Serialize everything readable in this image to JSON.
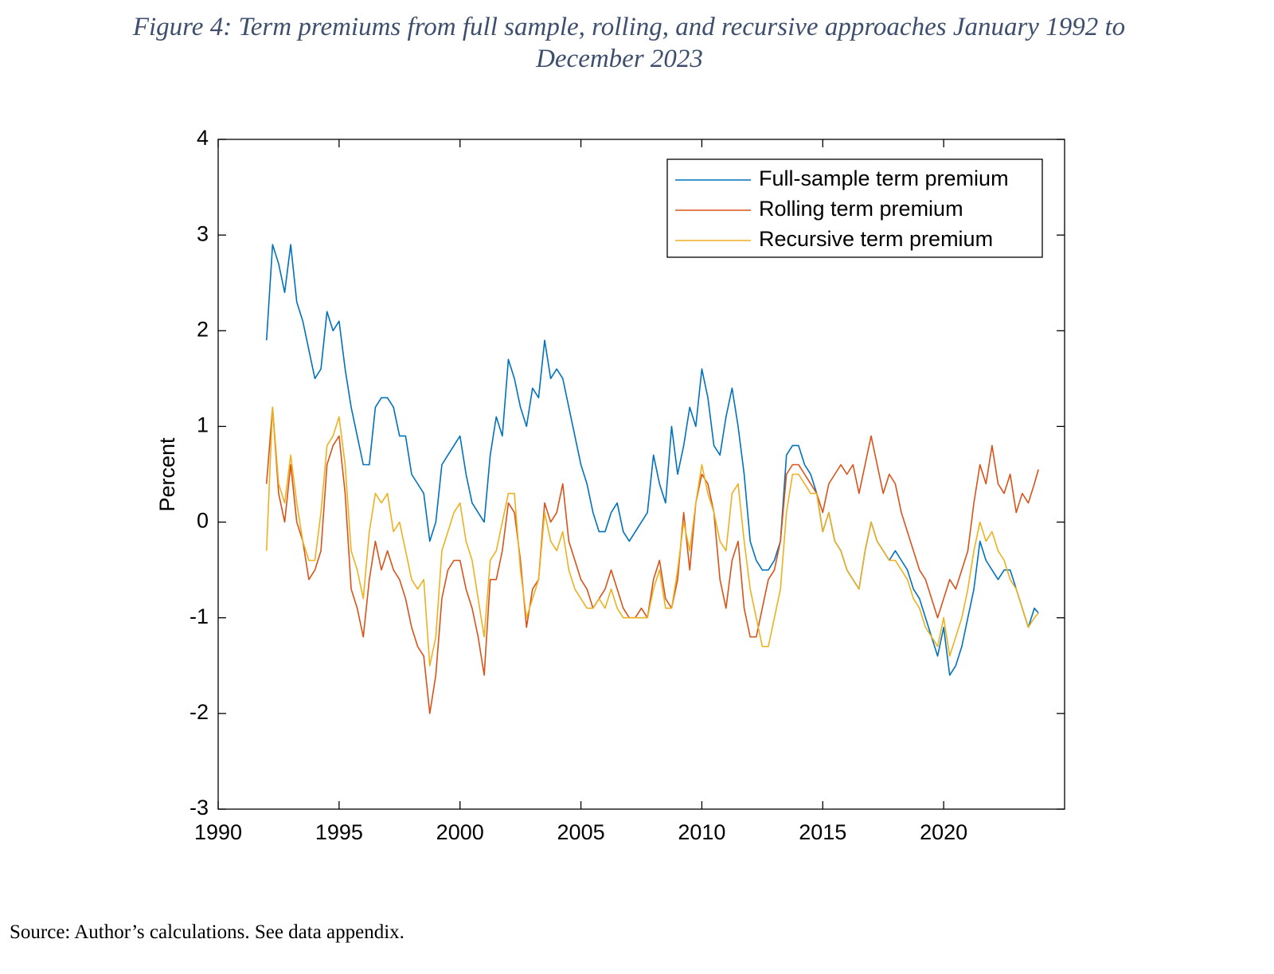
{
  "chart_data": {
    "type": "line",
    "title": "Figure 4: Term premiums from full sample, rolling, and recursive approaches January 1992 to December 2023",
    "ylabel": "Percent",
    "source": "Source: Author’s calculations. See data appendix.",
    "xlim": [
      1990,
      2025
    ],
    "xticks": [
      1990,
      1995,
      2000,
      2005,
      2010,
      2015,
      2020
    ],
    "ylim": [
      -3,
      4
    ],
    "yticks": [
      -3,
      -2,
      -1,
      0,
      1,
      2,
      3,
      4
    ],
    "grid": false,
    "legend": "northeast",
    "x": [
      1992,
      1992.25,
      1992.5,
      1992.75,
      1993,
      1993.25,
      1993.5,
      1993.75,
      1994,
      1994.25,
      1994.5,
      1994.75,
      1995,
      1995.25,
      1995.5,
      1995.75,
      1996,
      1996.25,
      1996.5,
      1996.75,
      1997,
      1997.25,
      1997.5,
      1997.75,
      1998,
      1998.25,
      1998.5,
      1998.75,
      1999,
      1999.25,
      1999.5,
      1999.75,
      2000,
      2000.25,
      2000.5,
      2000.75,
      2001,
      2001.25,
      2001.5,
      2001.75,
      2002,
      2002.25,
      2002.5,
      2002.75,
      2003,
      2003.25,
      2003.5,
      2003.75,
      2004,
      2004.25,
      2004.5,
      2004.75,
      2005,
      2005.25,
      2005.5,
      2005.75,
      2006,
      2006.25,
      2006.5,
      2006.75,
      2007,
      2007.25,
      2007.5,
      2007.75,
      2008,
      2008.25,
      2008.5,
      2008.75,
      2009,
      2009.25,
      2009.5,
      2009.75,
      2010,
      2010.25,
      2010.5,
      2010.75,
      2011,
      2011.25,
      2011.5,
      2011.75,
      2012,
      2012.25,
      2012.5,
      2012.75,
      2013,
      2013.25,
      2013.5,
      2013.75,
      2014,
      2014.25,
      2014.5,
      2014.75,
      2015,
      2015.25,
      2015.5,
      2015.75,
      2016,
      2016.25,
      2016.5,
      2016.75,
      2017,
      2017.25,
      2017.5,
      2017.75,
      2018,
      2018.25,
      2018.5,
      2018.75,
      2019,
      2019.25,
      2019.5,
      2019.75,
      2020,
      2020.25,
      2020.5,
      2020.75,
      2021,
      2021.25,
      2021.5,
      2021.75,
      2022,
      2022.25,
      2022.5,
      2022.75,
      2023,
      2023.25,
      2023.5,
      2023.75,
      2023.917
    ],
    "series": [
      {
        "name": "Full-sample term premium",
        "color": "#0072bd",
        "values": [
          1.9,
          2.9,
          2.7,
          2.4,
          2.9,
          2.3,
          2.1,
          1.8,
          1.5,
          1.6,
          2.2,
          2.0,
          2.1,
          1.6,
          1.2,
          0.9,
          0.6,
          0.6,
          1.2,
          1.3,
          1.3,
          1.2,
          0.9,
          0.9,
          0.5,
          0.4,
          0.3,
          -0.2,
          0.0,
          0.6,
          0.7,
          0.8,
          0.9,
          0.5,
          0.2,
          0.1,
          0.0,
          0.7,
          1.1,
          0.9,
          1.7,
          1.5,
          1.2,
          1.0,
          1.4,
          1.3,
          1.9,
          1.5,
          1.6,
          1.5,
          1.2,
          0.9,
          0.6,
          0.4,
          0.1,
          -0.1,
          -0.1,
          0.1,
          0.2,
          -0.1,
          -0.2,
          -0.1,
          0.0,
          0.1,
          0.7,
          0.4,
          0.2,
          1.0,
          0.5,
          0.8,
          1.2,
          1.0,
          1.6,
          1.3,
          0.8,
          0.7,
          1.1,
          1.4,
          1.0,
          0.5,
          -0.2,
          -0.4,
          -0.5,
          -0.5,
          -0.4,
          -0.2,
          0.7,
          0.8,
          0.8,
          0.6,
          0.5,
          0.3,
          -0.1,
          0.1,
          -0.2,
          -0.3,
          -0.5,
          -0.6,
          -0.7,
          -0.3,
          0.0,
          -0.2,
          -0.3,
          -0.4,
          -0.3,
          -0.4,
          -0.5,
          -0.7,
          -0.8,
          -1.0,
          -1.2,
          -1.4,
          -1.1,
          -1.6,
          -1.5,
          -1.3,
          -1.0,
          -0.7,
          -0.2,
          -0.4,
          -0.5,
          -0.6,
          -0.5,
          -0.5,
          -0.7,
          -0.9,
          -1.1,
          -0.9,
          -0.95
        ]
      },
      {
        "name": "Rolling term premium",
        "color": "#d95319",
        "values": [
          0.4,
          1.2,
          0.3,
          0.0,
          0.6,
          0.0,
          -0.2,
          -0.6,
          -0.5,
          -0.3,
          0.6,
          0.8,
          0.9,
          0.3,
          -0.7,
          -0.9,
          -1.2,
          -0.6,
          -0.2,
          -0.5,
          -0.3,
          -0.5,
          -0.6,
          -0.8,
          -1.1,
          -1.3,
          -1.4,
          -2.0,
          -1.6,
          -0.8,
          -0.5,
          -0.4,
          -0.4,
          -0.7,
          -0.9,
          -1.2,
          -1.6,
          -0.6,
          -0.6,
          -0.3,
          0.2,
          0.1,
          -0.4,
          -1.1,
          -0.7,
          -0.6,
          0.2,
          0.0,
          0.1,
          0.4,
          -0.2,
          -0.4,
          -0.6,
          -0.7,
          -0.9,
          -0.8,
          -0.7,
          -0.5,
          -0.7,
          -0.9,
          -1.0,
          -1.0,
          -0.9,
          -1.0,
          -0.6,
          -0.4,
          -0.8,
          -0.9,
          -0.6,
          0.1,
          -0.5,
          0.2,
          0.5,
          0.4,
          0.1,
          -0.6,
          -0.9,
          -0.4,
          -0.2,
          -0.9,
          -1.2,
          -1.2,
          -0.9,
          -0.6,
          -0.5,
          -0.2,
          0.5,
          0.6,
          0.6,
          0.5,
          0.4,
          0.3,
          0.1,
          0.4,
          0.5,
          0.6,
          0.5,
          0.6,
          0.3,
          0.6,
          0.9,
          0.6,
          0.3,
          0.5,
          0.4,
          0.1,
          -0.1,
          -0.3,
          -0.5,
          -0.6,
          -0.8,
          -1.0,
          -0.8,
          -0.6,
          -0.7,
          -0.5,
          -0.3,
          0.2,
          0.6,
          0.4,
          0.8,
          0.4,
          0.3,
          0.5,
          0.1,
          0.3,
          0.2,
          0.4,
          0.55
        ]
      },
      {
        "name": "Recursive term premium",
        "color": "#edb120",
        "values": [
          -0.3,
          1.2,
          0.4,
          0.2,
          0.7,
          0.2,
          -0.2,
          -0.4,
          -0.4,
          0.1,
          0.8,
          0.9,
          1.1,
          0.6,
          -0.3,
          -0.5,
          -0.8,
          -0.1,
          0.3,
          0.2,
          0.3,
          -0.1,
          0.0,
          -0.3,
          -0.6,
          -0.7,
          -0.6,
          -1.5,
          -1.2,
          -0.3,
          -0.1,
          0.1,
          0.2,
          -0.2,
          -0.4,
          -0.8,
          -1.2,
          -0.4,
          -0.3,
          0.0,
          0.3,
          0.3,
          -0.5,
          -1.0,
          -0.8,
          -0.6,
          0.1,
          -0.2,
          -0.3,
          -0.1,
          -0.5,
          -0.7,
          -0.8,
          -0.9,
          -0.9,
          -0.8,
          -0.9,
          -0.7,
          -0.9,
          -1.0,
          -1.0,
          -1.0,
          -1.0,
          -1.0,
          -0.7,
          -0.5,
          -0.9,
          -0.9,
          -0.5,
          0.0,
          -0.3,
          0.2,
          0.6,
          0.3,
          0.1,
          -0.2,
          -0.3,
          0.3,
          0.4,
          -0.2,
          -0.7,
          -1.0,
          -1.3,
          -1.3,
          -1.0,
          -0.7,
          0.1,
          0.5,
          0.5,
          0.4,
          0.3,
          0.3,
          -0.1,
          0.1,
          -0.2,
          -0.3,
          -0.5,
          -0.6,
          -0.7,
          -0.3,
          0.0,
          -0.2,
          -0.3,
          -0.4,
          -0.4,
          -0.5,
          -0.6,
          -0.8,
          -0.9,
          -1.1,
          -1.2,
          -1.3,
          -1.0,
          -1.4,
          -1.2,
          -1.0,
          -0.7,
          -0.3,
          0.0,
          -0.2,
          -0.1,
          -0.3,
          -0.4,
          -0.6,
          -0.7,
          -0.9,
          -1.1,
          -1.0,
          -0.95
        ]
      }
    ]
  }
}
